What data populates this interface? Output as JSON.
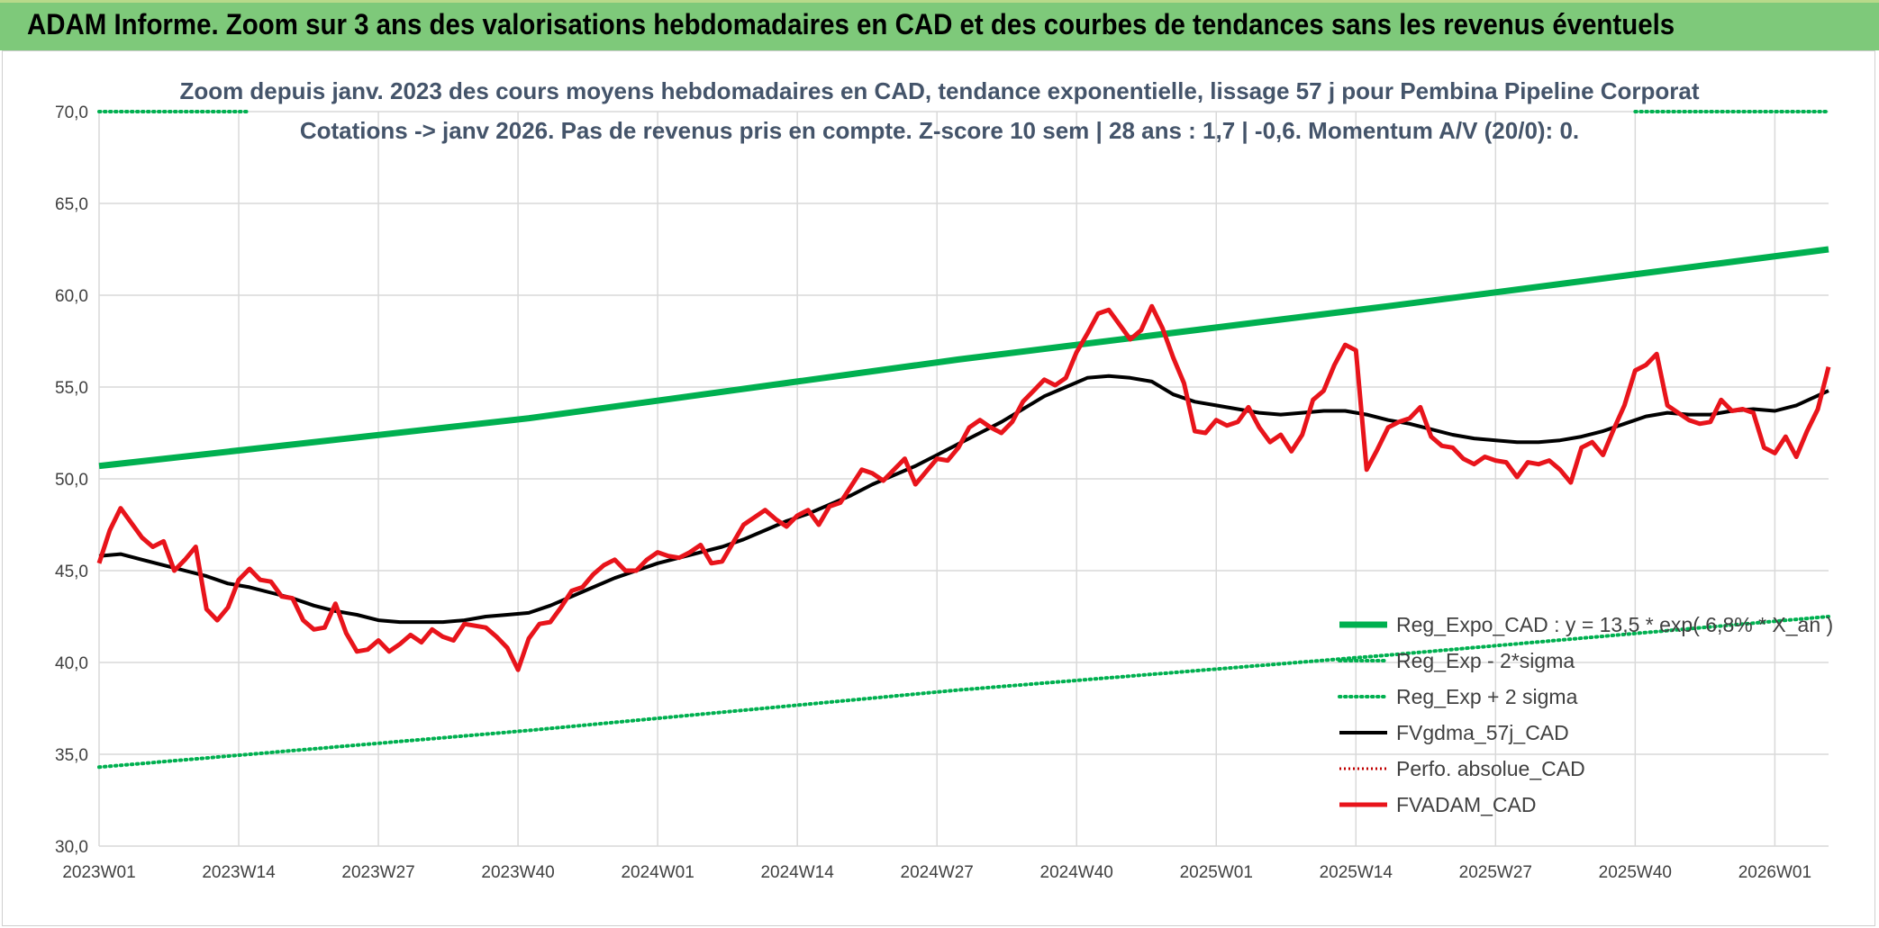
{
  "banner": {
    "title": "ADAM Informe. Zoom sur 3 ans des valorisations hebdomadaires en CAD et des courbes de tendances sans les revenus éventuels"
  },
  "colors": {
    "banner": "#7ec97a",
    "reg_expo": "#00b050",
    "band": "#00b050",
    "smooth": "#000000",
    "price": "#e8141b",
    "perfo": "#c00000"
  },
  "chart_data": {
    "type": "line",
    "title_lines": [
      "Zoom depuis janv. 2023 des cours moyens hebdomadaires en CAD, tendance exponentielle, lissage 57 j pour Pembina Pipeline Corporat",
      "Cotations -> janv 2026. Pas de revenus pris en compte. Z-score 10 sem | 28 ans : 1,7 | -0,6. Momentum A/V (20/0): 0."
    ],
    "ylim": [
      30,
      70
    ],
    "yticks": [
      "30,0",
      "35,0",
      "40,0",
      "45,0",
      "50,0",
      "55,0",
      "60,0",
      "65,0",
      "70,0"
    ],
    "xticks": [
      "2023W01",
      "2023W14",
      "2023W27",
      "2023W40",
      "2024W01",
      "2024W14",
      "2024W27",
      "2024W40",
      "2025W01",
      "2025W14",
      "2025W27",
      "2025W40",
      "2026W01"
    ],
    "x_range_weeks": [
      0,
      161
    ],
    "grid": true,
    "legend_position": "bottom-right",
    "legend": [
      "Reg_Expo_CAD : y = 13,5 * exp( 6,8% * X_an )",
      "Reg_Exp - 2*sigma",
      "Reg_Exp + 2 sigma",
      "FVgdma_57j_CAD",
      "Perfo. absolue_CAD",
      "FVADAM_CAD"
    ],
    "series": [
      {
        "name": "Reg_Expo_CAD : y = 13,5 * exp( 6,8% * X_an )",
        "style": "thick",
        "x": [
          0,
          40,
          80,
          120,
          161
        ],
        "y": [
          50.7,
          53.3,
          56.5,
          59.4,
          62.5
        ]
      },
      {
        "name": "Reg_Exp - 2*sigma",
        "style": "dotted",
        "x": [
          0,
          40,
          80,
          120,
          161
        ],
        "y": [
          34.3,
          36.3,
          38.5,
          40.4,
          42.5
        ]
      },
      {
        "name": "Reg_Exp + 2 sigma",
        "style": "dotted",
        "x": [
          0,
          14,
          143,
          161
        ],
        "y": [
          70,
          70,
          70,
          70
        ],
        "segments": [
          [
            0,
            14
          ],
          [
            143,
            161
          ]
        ]
      },
      {
        "name": "FVgdma_57j_CAD",
        "style": "solid",
        "x": [
          0,
          2,
          4,
          6,
          8,
          10,
          12,
          14,
          16,
          18,
          20,
          22,
          24,
          26,
          28,
          30,
          32,
          34,
          36,
          38,
          40,
          42,
          44,
          46,
          48,
          50,
          52,
          54,
          56,
          58,
          60,
          62,
          64,
          66,
          68,
          70,
          72,
          74,
          76,
          78,
          80,
          82,
          84,
          86,
          88,
          90,
          92,
          94,
          96,
          98,
          100,
          102,
          104,
          106,
          108,
          110,
          112,
          114,
          116,
          118,
          120,
          122,
          124,
          126,
          128,
          130,
          132,
          134,
          136,
          138,
          140,
          142,
          144,
          146,
          148,
          150,
          152,
          154,
          156,
          158,
          161
        ],
        "y": [
          45.8,
          45.9,
          45.6,
          45.3,
          45.0,
          44.7,
          44.3,
          44.1,
          43.8,
          43.5,
          43.1,
          42.8,
          42.6,
          42.3,
          42.2,
          42.2,
          42.2,
          42.3,
          42.5,
          42.6,
          42.7,
          43.1,
          43.6,
          44.1,
          44.6,
          45.0,
          45.4,
          45.7,
          46.0,
          46.3,
          46.7,
          47.2,
          47.7,
          48.1,
          48.6,
          49.1,
          49.7,
          50.2,
          50.7,
          51.3,
          51.9,
          52.5,
          53.1,
          53.8,
          54.5,
          55.0,
          55.5,
          55.6,
          55.5,
          55.3,
          54.6,
          54.2,
          54.0,
          53.8,
          53.6,
          53.5,
          53.6,
          53.7,
          53.7,
          53.5,
          53.2,
          53.0,
          52.7,
          52.4,
          52.2,
          52.1,
          52.0,
          52.0,
          52.1,
          52.3,
          52.6,
          53.0,
          53.4,
          53.6,
          53.5,
          53.5,
          53.7,
          53.8,
          53.7,
          54.0,
          54.8
        ]
      },
      {
        "name": "Perfo. absolue_CAD",
        "style": "dotted-red",
        "x": [],
        "y": []
      },
      {
        "name": "FVADAM_CAD",
        "style": "solid-red",
        "x": [
          0,
          1,
          2,
          3,
          4,
          5,
          6,
          7,
          8,
          9,
          10,
          11,
          12,
          13,
          14,
          15,
          16,
          17,
          18,
          19,
          20,
          21,
          22,
          23,
          24,
          25,
          26,
          27,
          28,
          29,
          30,
          31,
          32,
          33,
          34,
          35,
          36,
          37,
          38,
          39,
          40,
          41,
          42,
          43,
          44,
          45,
          46,
          47,
          48,
          49,
          50,
          51,
          52,
          53,
          54,
          55,
          56,
          57,
          58,
          59,
          60,
          61,
          62,
          63,
          64,
          65,
          66,
          67,
          68,
          69,
          70,
          71,
          72,
          73,
          74,
          75,
          76,
          77,
          78,
          79,
          80,
          81,
          82,
          83,
          84,
          85,
          86,
          87,
          88,
          89,
          90,
          91,
          92,
          93,
          94,
          95,
          96,
          97,
          98,
          99,
          100,
          101,
          102,
          103,
          104,
          105,
          106,
          107,
          108,
          109,
          110,
          111,
          112,
          113,
          114,
          115,
          116,
          117,
          118,
          119,
          120,
          121,
          122,
          123,
          124,
          125,
          126,
          127,
          128,
          129,
          130,
          131,
          132,
          133,
          134,
          135,
          136,
          137,
          138,
          139,
          140,
          141,
          142,
          143,
          144,
          145,
          146,
          147,
          148,
          149,
          150,
          151,
          152,
          153,
          154,
          155,
          156,
          157,
          158,
          159,
          160,
          161
        ],
        "y": [
          45.4,
          47.2,
          48.4,
          47.6,
          46.8,
          46.3,
          46.6,
          45.0,
          45.6,
          46.3,
          42.9,
          42.3,
          43.0,
          44.5,
          45.1,
          44.5,
          44.4,
          43.6,
          43.5,
          42.3,
          41.8,
          41.9,
          43.2,
          41.6,
          40.6,
          40.7,
          41.2,
          40.6,
          41.0,
          41.5,
          41.1,
          41.8,
          41.4,
          41.2,
          42.1,
          42.0,
          41.9,
          41.4,
          40.8,
          39.6,
          41.3,
          42.1,
          42.2,
          43.0,
          43.9,
          44.1,
          44.8,
          45.3,
          45.6,
          45.0,
          45.0,
          45.6,
          46.0,
          45.8,
          45.7,
          46.0,
          46.4,
          45.4,
          45.5,
          46.5,
          47.5,
          47.9,
          48.3,
          47.8,
          47.4,
          48.0,
          48.3,
          47.5,
          48.5,
          48.7,
          49.6,
          50.5,
          50.3,
          49.9,
          50.5,
          51.1,
          49.7,
          50.4,
          51.1,
          51.0,
          51.7,
          52.8,
          53.2,
          52.8,
          52.5,
          53.1,
          54.2,
          54.8,
          55.4,
          55.1,
          55.5,
          56.9,
          57.9,
          59.0,
          59.2,
          58.4,
          57.6,
          58.1,
          59.4,
          58.2,
          56.6,
          55.2,
          52.6,
          52.5,
          53.2,
          52.9,
          53.1,
          53.9,
          52.8,
          52.0,
          52.4,
          51.5,
          52.4,
          54.3,
          54.8,
          56.2,
          57.3,
          57.0,
          50.5,
          51.6,
          52.8,
          53.1,
          53.3,
          53.9,
          52.3,
          51.8,
          51.7,
          51.1,
          50.8,
          51.2,
          51.0,
          50.9,
          50.1,
          50.9,
          50.8,
          51.0,
          50.5,
          49.8,
          51.7,
          52.0,
          51.3,
          52.7,
          54.0,
          55.9,
          56.2,
          56.8,
          54.0,
          53.6,
          53.2,
          53.0,
          53.1,
          54.3,
          53.7,
          53.8,
          53.6,
          51.7,
          51.4,
          52.3,
          51.2,
          52.6,
          53.8,
          56.1
        ]
      }
    ]
  }
}
